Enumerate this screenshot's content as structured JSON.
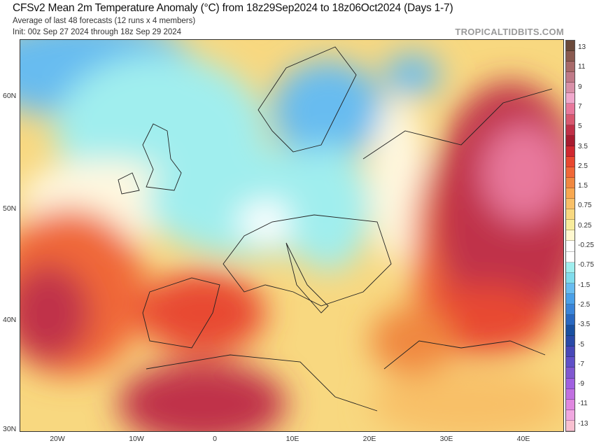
{
  "header": {
    "title": "CFSv2 Mean 2m Temperature Anomaly (°C) from 18z29Sep2024 to 18z06Oct2024 (Days 1-7)",
    "subtitle": "Average of last 48 forecasts (12 runs x 4 members)",
    "init": "Init: 00z Sep 27 2024 through 18z Sep 29 2024",
    "brand": "TROPICALTIDBITS.COM"
  },
  "axes": {
    "lat_labels": [
      "60N",
      "50N",
      "40N",
      "30N"
    ],
    "lon_labels": [
      "20W",
      "10W",
      "0",
      "10E",
      "20E",
      "30E",
      "40E"
    ]
  },
  "colorbar": {
    "labels": [
      "13",
      "11",
      "9",
      "7",
      "5",
      "3.5",
      "2.5",
      "1.5",
      "0.75",
      "0.25",
      "-0.25",
      "-0.75",
      "-1.5",
      "-2.5",
      "-3.5",
      "-5",
      "-7",
      "-9",
      "-11",
      "-13"
    ],
    "colors": [
      "#6b4a3a",
      "#8a5a50",
      "#a86a6a",
      "#c07a88",
      "#d890a8",
      "#f0a8cc",
      "#e8789c",
      "#d85870",
      "#c03048",
      "#a81c30",
      "#d02830",
      "#e84830",
      "#f06838",
      "#f08840",
      "#f8a850",
      "#f8c068",
      "#f8d880",
      "#f8ec9c",
      "#fff8d0",
      "#ffffff",
      "#ffffff",
      "#a0eeee",
      "#80dcec",
      "#68bcf0",
      "#4aa0e8",
      "#3a84d8",
      "#2a68c0",
      "#1a50a0",
      "#2a4aa8",
      "#4848b8",
      "#6050c8",
      "#8058d0",
      "#a060e0",
      "#c070e0",
      "#e088e0",
      "#f0a8e0",
      "#f8c0d0"
    ]
  }
}
